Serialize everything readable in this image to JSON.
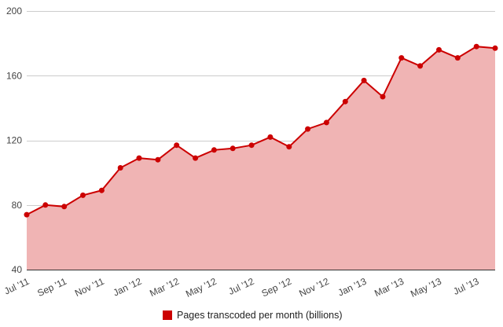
{
  "chart_data": {
    "type": "area",
    "x": [
      "2011-07",
      "2011-08",
      "2011-09",
      "2011-10",
      "2011-11",
      "2011-12",
      "2012-01",
      "2012-02",
      "2012-03",
      "2012-04",
      "2012-05",
      "2012-06",
      "2012-07",
      "2012-08",
      "2012-09",
      "2012-10",
      "2012-11",
      "2012-12",
      "2013-01",
      "2013-02",
      "2013-03",
      "2013-04",
      "2013-05",
      "2013-06",
      "2013-07",
      "2013-08"
    ],
    "x_tick_labels": [
      "Jul '11",
      "Sep '11",
      "Nov '11",
      "Jan '12",
      "Mar '12",
      "May '12",
      "Jul '12",
      "Sep '12",
      "Nov '12",
      "Jan '13",
      "Mar '13",
      "May '13",
      "Jul '13"
    ],
    "series": [
      {
        "name": "Pages transcoded per month (billions)",
        "values": [
          74,
          80,
          79,
          86,
          89,
          103,
          109,
          108,
          117,
          109,
          114,
          115,
          117,
          122,
          116,
          127,
          131,
          144,
          157,
          147,
          171,
          166,
          176,
          171,
          178,
          177
        ],
        "color": "#cc0000",
        "fill": "#f0b4b4"
      }
    ],
    "y_ticks": [
      40,
      80,
      120,
      160,
      200
    ],
    "ylim": [
      40,
      200
    ],
    "grid": true,
    "legend": "bottom",
    "title": "",
    "xlabel": "",
    "ylabel": ""
  }
}
